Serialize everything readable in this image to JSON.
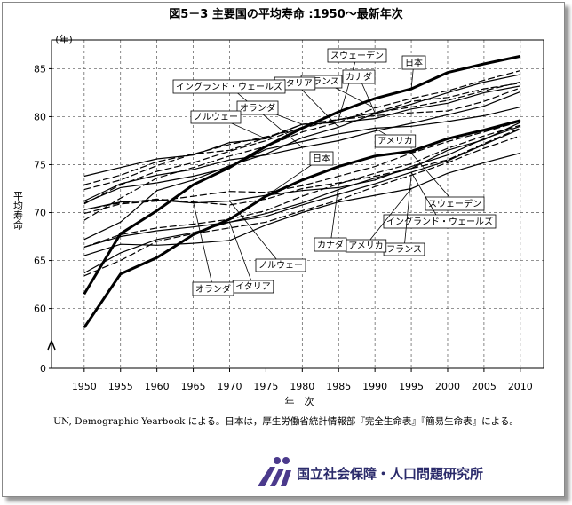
{
  "chart_data": {
    "type": "line",
    "title": "図5－3 主要国の平均寿命 :1950～最新年次",
    "y_unit": "(年)",
    "y_label": "平均寿命",
    "x_label": "年　次",
    "note": "UN, Demographic Yearbook による。日本は，厚生労働省統計情報部『完全生命表』『簡易生命表』による。",
    "publisher": "国立社会保障・人口問題研究所",
    "x": [
      1950,
      1955,
      1960,
      1965,
      1970,
      1975,
      1980,
      1985,
      1990,
      1995,
      2000,
      2005,
      2010
    ],
    "xlim": [
      1945.5,
      2013.2
    ],
    "xticks": [
      1950,
      1955,
      1960,
      1965,
      1970,
      1975,
      1980,
      1985,
      1990,
      1995,
      2000,
      2005,
      2010
    ],
    "ylim": [
      0,
      88
    ],
    "ybreak": 57,
    "yticks": [
      0,
      60,
      65,
      70,
      75,
      80,
      85
    ],
    "grid": true,
    "series": [
      {
        "name": "スウェーデン",
        "color": "#000",
        "style": "dashed",
        "values": [
          72.4,
          73.4,
          74.9,
          76.1,
          77.1,
          77.9,
          78.8,
          79.7,
          80.4,
          81.6,
          82.0,
          82.9,
          83.5
        ]
      },
      {
        "name": "日本",
        "color": "#000",
        "style": "thick",
        "values": [
          61.5,
          67.8,
          70.2,
          72.9,
          74.7,
          76.9,
          78.8,
          80.5,
          81.9,
          82.9,
          84.6,
          85.5,
          86.3
        ]
      },
      {
        "name": "カナダ",
        "color": "#000",
        "style": "dashed",
        "values": [
          70.9,
          72.9,
          74.3,
          75.2,
          76.4,
          77.5,
          78.9,
          79.7,
          80.4,
          81.0,
          81.7,
          82.7,
          83.6
        ]
      },
      {
        "name": "フランス",
        "color": "#000",
        "style": "dashed",
        "values": [
          69.2,
          71.5,
          73.6,
          74.7,
          75.9,
          76.9,
          78.4,
          79.4,
          80.9,
          81.9,
          82.7,
          83.8,
          84.8
        ]
      },
      {
        "name": "イタリア",
        "color": "#000",
        "style": "solid",
        "values": [
          67.2,
          69.0,
          72.3,
          73.4,
          74.9,
          76.1,
          77.8,
          78.9,
          80.3,
          81.3,
          82.5,
          83.6,
          84.4
        ]
      },
      {
        "name": "イングランド・ウェールズ",
        "color": "#000",
        "style": "solid",
        "values": [
          71.2,
          73.0,
          73.9,
          74.5,
          75.5,
          76.0,
          76.8,
          77.5,
          78.5,
          79.3,
          80.2,
          81.1,
          82.6
        ]
      },
      {
        "name": "オランダ",
        "color": "#000",
        "style": "dashed",
        "values": [
          72.9,
          73.9,
          75.3,
          76.1,
          76.5,
          77.8,
          79.2,
          79.7,
          80.1,
          80.4,
          80.6,
          81.6,
          83.0
        ]
      },
      {
        "name": "ノルウェー",
        "color": "#000",
        "style": "solid",
        "values": [
          73.8,
          74.7,
          75.6,
          76.0,
          77.3,
          77.7,
          79.2,
          79.4,
          79.8,
          80.8,
          81.4,
          82.5,
          83.2
        ]
      },
      {
        "name": "アメリカ",
        "color": "#000",
        "style": "solid",
        "values": [
          71.0,
          72.6,
          73.1,
          73.8,
          74.7,
          76.6,
          77.4,
          78.2,
          78.8,
          79.0,
          79.5,
          80.1,
          81.0
        ]
      },
      {
        "name": "日本",
        "color": "#000",
        "style": "thick",
        "values": [
          58.0,
          63.6,
          65.3,
          67.7,
          69.3,
          71.7,
          73.4,
          74.8,
          75.9,
          76.4,
          77.7,
          78.6,
          79.6
        ]
      },
      {
        "name": "スウェーデン",
        "color": "#000",
        "style": "dashed",
        "values": [
          69.9,
          70.9,
          71.2,
          71.7,
          72.2,
          72.1,
          72.8,
          73.8,
          74.8,
          76.2,
          77.4,
          78.4,
          79.5
        ]
      },
      {
        "name": "イングランド・ウェールズ",
        "color": "#000",
        "style": "solid",
        "values": [
          66.4,
          67.5,
          68.1,
          68.5,
          69.0,
          69.6,
          70.8,
          71.9,
          73.0,
          74.2,
          75.4,
          77.1,
          78.7
        ]
      },
      {
        "name": "フランス",
        "color": "#000",
        "style": "dashed",
        "values": [
          63.4,
          65.0,
          67.0,
          67.8,
          68.4,
          69.0,
          70.2,
          71.3,
          72.7,
          73.9,
          75.2,
          76.7,
          78.0
        ]
      },
      {
        "name": "アメリカ",
        "color": "#000",
        "style": "solid",
        "values": [
          65.5,
          66.7,
          66.6,
          66.8,
          67.1,
          68.7,
          70.0,
          71.1,
          71.8,
          72.5,
          74.1,
          75.2,
          76.2
        ]
      },
      {
        "name": "カナダ",
        "color": "#000",
        "style": "dashed",
        "values": [
          66.4,
          67.7,
          68.4,
          68.8,
          69.3,
          70.2,
          71.7,
          73.0,
          74.1,
          75.1,
          76.7,
          78.0,
          79.1
        ]
      },
      {
        "name": "イタリア",
        "color": "#000",
        "style": "solid",
        "values": [
          63.7,
          65.8,
          67.2,
          67.9,
          69.0,
          69.9,
          71.0,
          72.4,
          73.6,
          74.6,
          76.5,
          77.6,
          79.4
        ]
      },
      {
        "name": "ノルウェー",
        "color": "#000",
        "style": "solid",
        "values": [
          70.3,
          71.1,
          71.3,
          71.0,
          71.2,
          71.8,
          72.3,
          72.6,
          73.4,
          74.8,
          76.0,
          77.7,
          79.0
        ]
      },
      {
        "name": "オランダ",
        "color": "#000",
        "style": "dashed",
        "values": [
          70.3,
          71.0,
          71.4,
          71.1,
          70.8,
          71.4,
          72.5,
          73.1,
          73.8,
          74.6,
          75.5,
          77.2,
          78.8
        ]
      }
    ]
  }
}
